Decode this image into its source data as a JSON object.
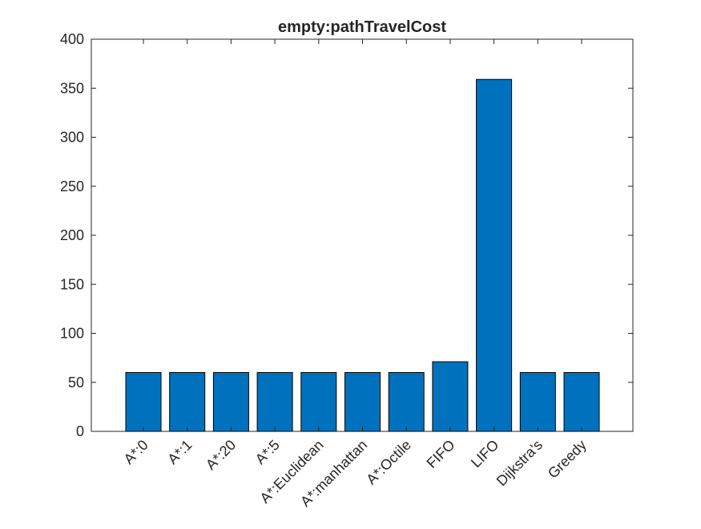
{
  "chart_data": {
    "type": "bar",
    "title": "empty:pathTravelCost",
    "xlabel": "",
    "ylabel": "",
    "categories": [
      "A*:0",
      "A*:1",
      "A*:20",
      "A*:5",
      "A*:Euclidean",
      "A*:manhattan",
      "A*:Octile",
      "FIFO",
      "LIFO",
      "Dijkstra's",
      "Greedy"
    ],
    "values": [
      60,
      60,
      60,
      60,
      60,
      60,
      60,
      71,
      359,
      60,
      60
    ],
    "ylim": [
      0,
      400
    ],
    "yticks": [
      "0",
      "50",
      "100",
      "150",
      "200",
      "250",
      "300",
      "350",
      "400"
    ],
    "grid": false,
    "bar_color": "#0072BD",
    "bar_edge_color": "#000000"
  }
}
